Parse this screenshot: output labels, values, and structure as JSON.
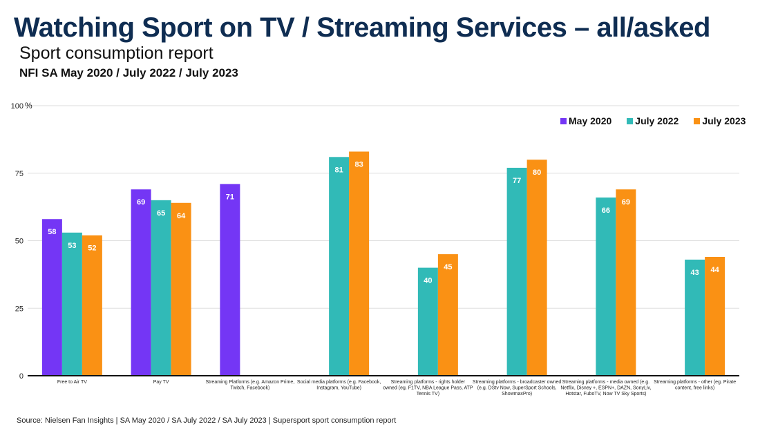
{
  "header": {
    "title": "Watching Sport on TV / Streaming Services – all/asked",
    "subtitle": "Sport consumption report",
    "subtitle2": "NFI SA May 2020 / July 2022 / July 2023"
  },
  "footer": {
    "source": "Source: Nielsen Fan Insights | SA May 2020 / SA July 2022 / SA July 2023 | Supersport sport consumption report"
  },
  "colors": {
    "may2020": "#7436f5",
    "jul2022": "#31bab7",
    "jul2023": "#fa9114"
  },
  "chart_data": {
    "type": "bar",
    "title": "Watching Sport on TV / Streaming Services – all/asked",
    "ylabel": "%",
    "ylim": [
      0,
      100
    ],
    "yticks": [
      0,
      25,
      50,
      75,
      100
    ],
    "ytick_labels": [
      "0",
      "25",
      "50",
      "75",
      "100"
    ],
    "ytick_unit": "%",
    "grid": true,
    "legend_position": "top-right",
    "categories": [
      [
        "Free to Air TV"
      ],
      [
        "Pay TV"
      ],
      [
        "Streaming Platforms (e.g. Amazon Prime,",
        "Twitch, Facebook)"
      ],
      [
        "Social media platforms (e.g. Facebook,",
        "Instagram, YouTube)"
      ],
      [
        "Streaming platforms - rights holder",
        "owned (eg. F1TV, NBA League Pass, ATP",
        "Tennis TV)"
      ],
      [
        "Streaming platforms - broadcaster owned",
        "(e.g. DStv Now, SuperSport Schools,",
        "ShowmaxPro)"
      ],
      [
        "Streaming platforms - media owned (e.g.",
        "Netflix, Disney +, ESPN+, DAZN, SonyLiv,",
        "Hotstar, FuboTV, Now TV Sky Sports)"
      ],
      [
        "Streaming platforms - other (eg. Pirate",
        "content, free links)"
      ]
    ],
    "series": [
      {
        "name": "May 2020",
        "values": [
          58,
          69,
          71,
          null,
          null,
          null,
          null,
          null
        ]
      },
      {
        "name": "July 2022",
        "values": [
          53,
          65,
          null,
          81,
          40,
          77,
          66,
          43
        ]
      },
      {
        "name": "July 2023",
        "values": [
          52,
          64,
          null,
          83,
          45,
          80,
          69,
          44
        ]
      }
    ]
  }
}
